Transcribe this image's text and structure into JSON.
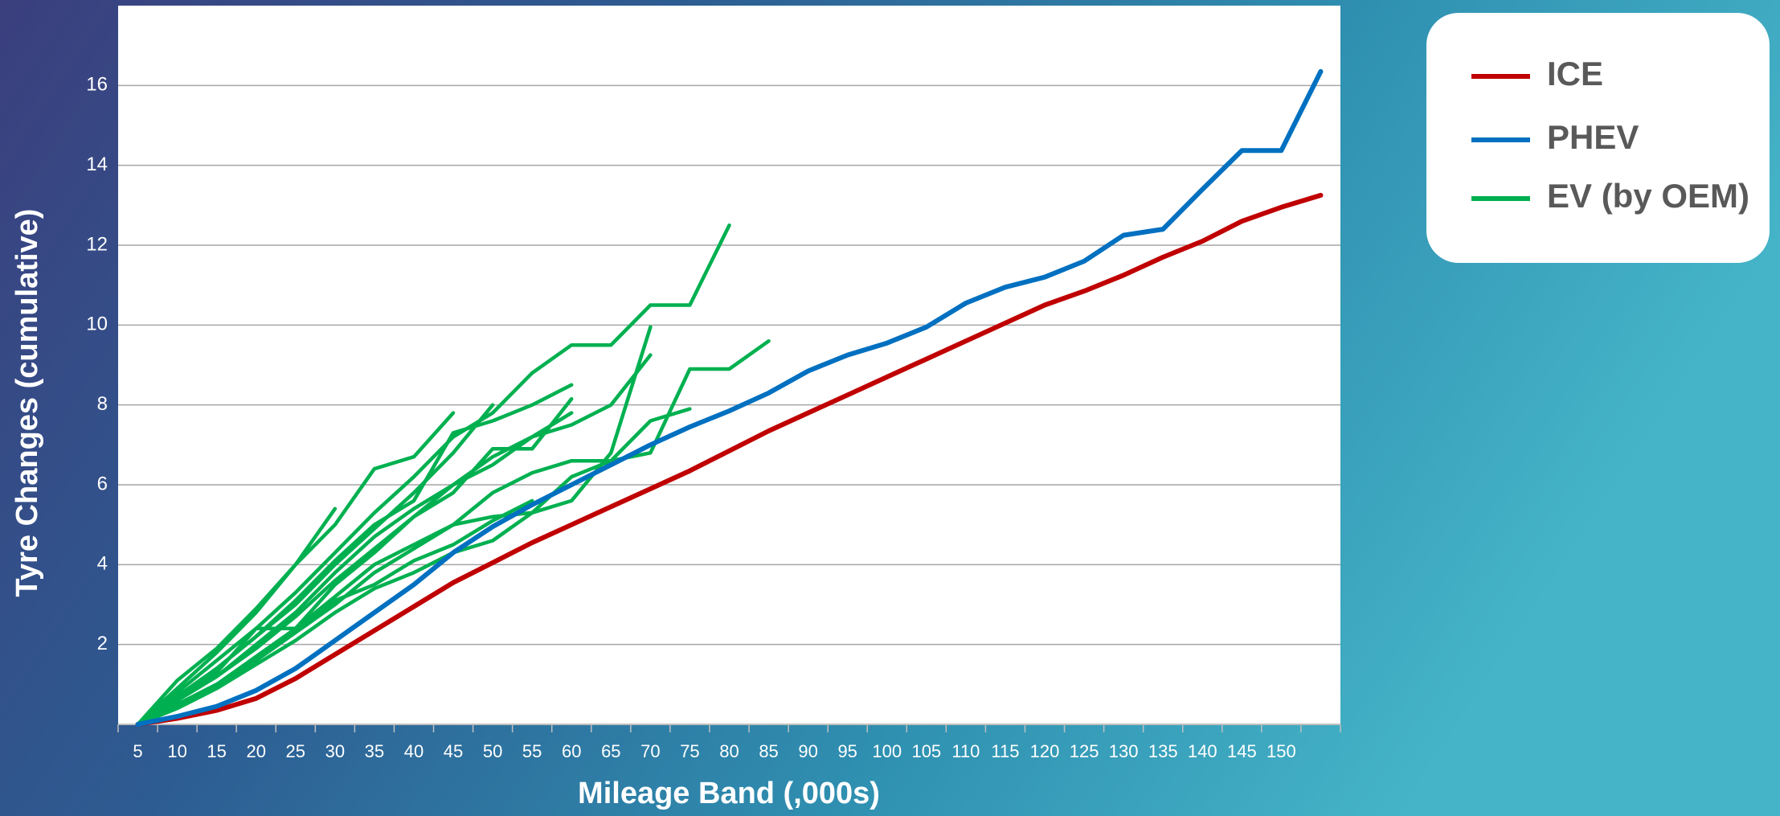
{
  "chart_data": {
    "type": "line",
    "x_label": "Mileage Band (,000s)",
    "y_label": "Tyre Changes (cumulative)",
    "categories": [
      "5",
      "10",
      "15",
      "20",
      "25",
      "30",
      "35",
      "40",
      "45",
      "50",
      "55",
      "60",
      "65",
      "70",
      "75",
      "80",
      "85",
      "90",
      "95",
      "100",
      "105",
      "110",
      "115",
      "120",
      "125",
      "130",
      "135",
      "140",
      "145",
      "150",
      null
    ],
    "ylim": [
      0,
      18
    ],
    "yticks": [
      2,
      4,
      6,
      8,
      10,
      12,
      14,
      16
    ],
    "grid": true,
    "legend": "top-right",
    "series": [
      {
        "name": "ICE",
        "color": "#c00000",
        "values": [
          0,
          0.15,
          0.35,
          0.65,
          1.15,
          1.75,
          2.35,
          2.95,
          3.55,
          4.05,
          4.55,
          5.0,
          5.45,
          5.9,
          6.35,
          6.85,
          7.35,
          7.8,
          8.25,
          8.7,
          9.15,
          9.6,
          10.05,
          10.5,
          10.85,
          11.25,
          11.7,
          12.1,
          12.6,
          12.95,
          13.25
        ]
      },
      {
        "name": "PHEV",
        "color": "#0070c0",
        "values": [
          0,
          0.2,
          0.45,
          0.85,
          1.4,
          2.1,
          2.8,
          3.5,
          4.3,
          4.95,
          5.5,
          6.0,
          6.5,
          7.0,
          7.45,
          7.85,
          8.3,
          8.85,
          9.25,
          9.55,
          9.95,
          10.55,
          10.95,
          11.2,
          11.6,
          12.25,
          12.4,
          13.4,
          14.37,
          14.37,
          16.35
        ]
      }
    ],
    "ev_series": {
      "name": "EV (by OEM)",
      "color": "#00b050",
      "lines": [
        [
          0,
          0.8,
          1.6,
          2.4,
          3.3,
          4.3,
          5.3,
          6.2,
          7.2,
          7.8,
          8.8,
          9.5,
          9.5,
          10.5,
          10.5,
          12.5
        ],
        [
          0,
          1.1,
          1.9,
          2.9,
          4.0,
          5.4
        ],
        [
          0,
          0.9,
          1.8,
          2.8,
          4.0,
          5.0,
          6.4,
          6.7,
          7.8
        ],
        [
          0,
          0.5,
          1.0,
          1.6,
          2.3,
          3.0,
          3.8,
          4.4,
          5.0,
          5.8,
          6.3,
          6.6,
          6.6,
          6.8,
          8.9,
          8.9,
          9.6
        ],
        [
          0,
          0.5,
          1.0,
          1.6,
          2.4,
          3.2,
          4.0,
          4.5,
          5.0,
          5.2,
          5.3,
          5.6,
          6.8,
          9.95
        ],
        [
          0,
          0.4,
          0.9,
          1.5,
          2.1,
          2.8,
          3.4,
          3.8,
          4.3,
          4.6,
          5.3,
          6.2,
          6.6,
          7.6,
          7.9
        ],
        [
          0,
          0.6,
          1.2,
          2.0,
          2.8,
          3.8,
          4.7,
          5.4,
          6.0,
          6.7,
          7.2,
          7.5,
          8.0,
          9.25
        ],
        [
          0,
          0.7,
          1.4,
          2.2,
          3.1,
          4.1,
          5.0,
          5.6,
          7.3,
          7.6,
          8.0,
          8.5
        ],
        [
          0,
          0.6,
          1.2,
          1.9,
          2.7,
          3.6,
          4.4,
          5.2,
          5.8,
          6.9,
          6.9,
          8.15
        ],
        [
          0,
          0.5,
          1.0,
          1.7,
          2.4,
          3.1,
          3.5,
          4.1,
          4.5,
          5.1,
          5.6
        ],
        [
          0,
          0.7,
          1.4,
          2.2,
          3.0,
          4.0,
          4.9,
          5.8,
          6.8,
          8.0
        ],
        [
          0,
          0.6,
          1.3,
          2.4,
          2.4,
          3.5,
          4.3,
          5.2,
          6.0,
          6.5,
          7.2,
          7.8
        ]
      ]
    }
  }
}
